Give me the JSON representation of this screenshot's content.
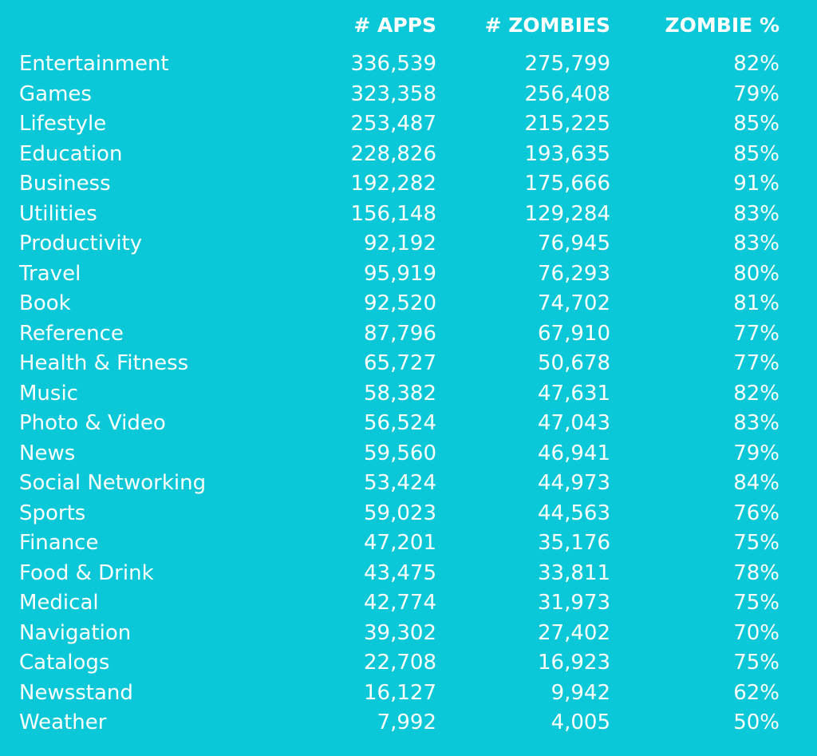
{
  "table": {
    "columns": [
      "# APPS",
      "# ZOMBIES",
      "ZOMBIE %"
    ],
    "rows": [
      [
        "Entertainment",
        "336,539",
        "275,799",
        "82%"
      ],
      [
        "Games",
        "323,358",
        "256,408",
        "79%"
      ],
      [
        "Lifestyle",
        "253,487",
        "215,225",
        "85%"
      ],
      [
        "Education",
        "228,826",
        "193,635",
        "85%"
      ],
      [
        "Business",
        "192,282",
        "175,666",
        "91%"
      ],
      [
        "Utilities",
        "156,148",
        "129,284",
        "83%"
      ],
      [
        "Productivity",
        "92,192",
        "76,945",
        "83%"
      ],
      [
        "Travel",
        "95,919",
        "76,293",
        "80%"
      ],
      [
        "Book",
        "92,520",
        "74,702",
        "81%"
      ],
      [
        "Reference",
        "87,796",
        "67,910",
        "77%"
      ],
      [
        "Health & Fitness",
        "65,727",
        "50,678",
        "77%"
      ],
      [
        "Music",
        "58,382",
        "47,631",
        "82%"
      ],
      [
        "Photo & Video",
        "56,524",
        "47,043",
        "83%"
      ],
      [
        "News",
        "59,560",
        "46,941",
        "79%"
      ],
      [
        "Social Networking",
        "53,424",
        "44,973",
        "84%"
      ],
      [
        "Sports",
        "59,023",
        "44,563",
        "76%"
      ],
      [
        "Finance",
        "47,201",
        "35,176",
        "75%"
      ],
      [
        "Food & Drink",
        "43,475",
        "33,811",
        "78%"
      ],
      [
        "Medical",
        "42,774",
        "31,973",
        "75%"
      ],
      [
        "Navigation",
        "39,302",
        "27,402",
        "70%"
      ],
      [
        "Catalogs",
        "22,708",
        "16,923",
        "75%"
      ],
      [
        "Newsstand",
        "16,127",
        "9,942",
        "62%"
      ],
      [
        "Weather",
        "7,992",
        "4,005",
        "50%"
      ]
    ]
  }
}
